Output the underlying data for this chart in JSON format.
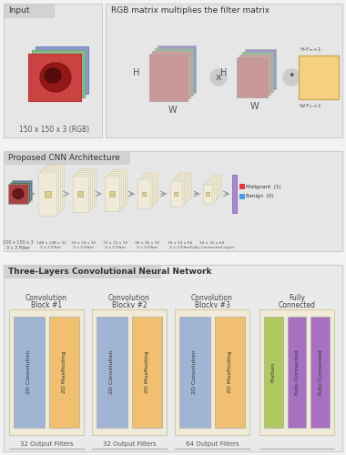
{
  "bg_color": "#f2f2f2",
  "section1_title": "Input",
  "section1_sub": "150 x 150 x 3 (RGB)",
  "section2_title": "RGB matrix multiplies the filter matrix",
  "section3_title": "Proposed CNN Architecture",
  "cnn_labels": [
    "150 x 150 x 3",
    "148 x 148 x 32",
    "74 x 74 x 32",
    "72 x 72 x 32",
    "36 x 36 x 32",
    "34 x 34 x 64",
    "16 x 16 x 64"
  ],
  "cnn_filters_bot": [
    "3 x 3 Filter",
    "2 x 2 Filter",
    "3 x 3 Filter",
    "2 x 2 Filter",
    "3 x 3 Filter",
    "2 x 2 Filter",
    "Fully Connected Layer"
  ],
  "malignant_label": "Malignant  (1)",
  "benign_label": "Benign  (0)",
  "section4_title": "Three-Layers Convolutional Neural Network",
  "block_titles": [
    "Convolution\nBlock #1",
    "Convolution\nBlockv #2",
    "Convolution\nBlockv #3",
    "Fully\nConnected"
  ],
  "block_inner_labels": [
    [
      "2D Convolution",
      "2D MaxPooling"
    ],
    [
      "2D Convolution",
      "2D MaxPooling"
    ],
    [
      "2D Convolution",
      "2D MaxPooling"
    ],
    [
      "Flatten",
      "Fully-Connected",
      "Fully-Connected"
    ]
  ],
  "block_filters": [
    "32 Output Filters",
    "32 Output Filters",
    "64 Output Filters",
    ""
  ],
  "conv_color": "#a0b4d4",
  "pool_color": "#f0c070",
  "flatten_color": "#b0c860",
  "fc_color": "#a870c0",
  "panel_color": "#e6e6e6",
  "tab_color": "#d2d2d2",
  "block_outer_color": "#f0ead8",
  "cnn_fm_color": "#f0ead8",
  "white": "#ffffff"
}
